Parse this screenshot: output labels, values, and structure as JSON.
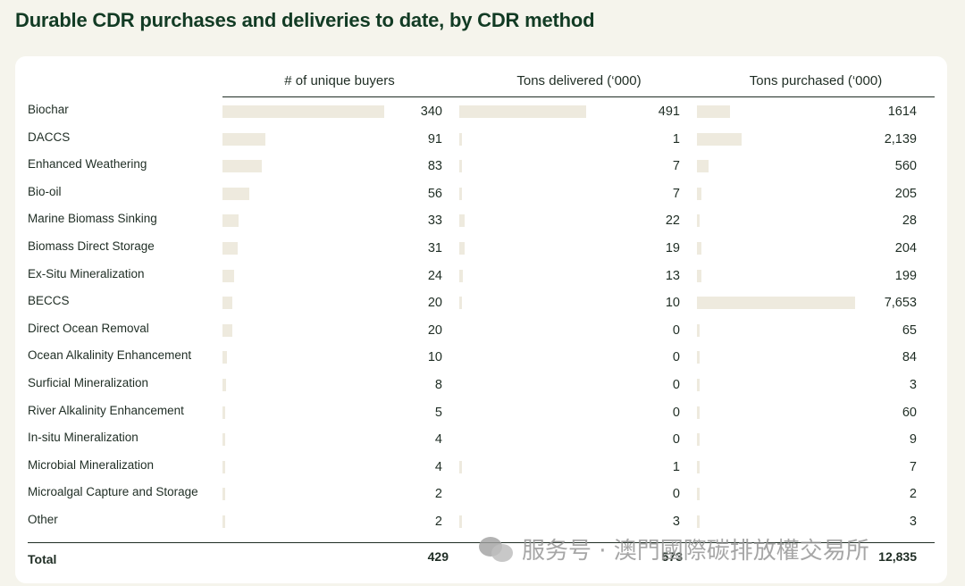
{
  "title": "Durable CDR purchases and deliveries to date, by CDR method",
  "headers": {
    "buyers": "# of unique buyers",
    "delivered": "Tons delivered (‘000)",
    "purchased": "Tons purchased (‘000)"
  },
  "chart_data": {
    "type": "table",
    "title": "Durable CDR purchases and deliveries to date, by CDR method",
    "columns": [
      "# of unique buyers",
      "Tons delivered (‘000)",
      "Tons purchased (‘000)"
    ],
    "rows": [
      {
        "label": "Biochar",
        "buyers": 340,
        "delivered": 491,
        "purchased": 1614,
        "buyers_text": "340",
        "delivered_text": "491",
        "purchased_text": "1614"
      },
      {
        "label": "DACCS",
        "buyers": 91,
        "delivered": 1,
        "purchased": 2139,
        "buyers_text": "91",
        "delivered_text": "1",
        "purchased_text": "2,139"
      },
      {
        "label": "Enhanced Weathering",
        "buyers": 83,
        "delivered": 7,
        "purchased": 560,
        "buyers_text": "83",
        "delivered_text": "7",
        "purchased_text": "560"
      },
      {
        "label": "Bio-oil",
        "buyers": 56,
        "delivered": 7,
        "purchased": 205,
        "buyers_text": "56",
        "delivered_text": "7",
        "purchased_text": "205"
      },
      {
        "label": "Marine Biomass Sinking",
        "buyers": 33,
        "delivered": 22,
        "purchased": 28,
        "buyers_text": "33",
        "delivered_text": "22",
        "purchased_text": "28"
      },
      {
        "label": "Biomass Direct Storage",
        "buyers": 31,
        "delivered": 19,
        "purchased": 204,
        "buyers_text": "31",
        "delivered_text": "19",
        "purchased_text": "204"
      },
      {
        "label": "Ex-Situ Mineralization",
        "buyers": 24,
        "delivered": 13,
        "purchased": 199,
        "buyers_text": "24",
        "delivered_text": "13",
        "purchased_text": "199"
      },
      {
        "label": "BECCS",
        "buyers": 20,
        "delivered": 10,
        "purchased": 7653,
        "buyers_text": "20",
        "delivered_text": "10",
        "purchased_text": "7,653"
      },
      {
        "label": "Direct Ocean Removal",
        "buyers": 20,
        "delivered": 0,
        "purchased": 65,
        "buyers_text": "20",
        "delivered_text": "0",
        "purchased_text": "65"
      },
      {
        "label": "Ocean Alkalinity Enhancement",
        "buyers": 10,
        "delivered": 0,
        "purchased": 84,
        "buyers_text": "10",
        "delivered_text": "0",
        "purchased_text": "84"
      },
      {
        "label": "Surficial Mineralization",
        "buyers": 8,
        "delivered": 0,
        "purchased": 3,
        "buyers_text": "8",
        "delivered_text": "0",
        "purchased_text": "3"
      },
      {
        "label": "River Alkalinity Enhancement",
        "buyers": 5,
        "delivered": 0,
        "purchased": 60,
        "buyers_text": "5",
        "delivered_text": "0",
        "purchased_text": "60"
      },
      {
        "label": "In-situ Mineralization",
        "buyers": 4,
        "delivered": 0,
        "purchased": 9,
        "buyers_text": "4",
        "delivered_text": "0",
        "purchased_text": "9"
      },
      {
        "label": "Microbial Mineralization",
        "buyers": 4,
        "delivered": 1,
        "purchased": 7,
        "buyers_text": "4",
        "delivered_text": "1",
        "purchased_text": "7"
      },
      {
        "label": "Microalgal Capture and Storage",
        "buyers": 2,
        "delivered": 0,
        "purchased": 2,
        "buyers_text": "2",
        "delivered_text": "0",
        "purchased_text": "2"
      },
      {
        "label": "Other",
        "buyers": 2,
        "delivered": 3,
        "purchased": 3,
        "buyers_text": "2",
        "delivered_text": "3",
        "purchased_text": "3"
      }
    ],
    "total": {
      "label": "Total",
      "buyers": "429",
      "delivered": "573",
      "purchased": "12,835"
    },
    "bar_color": "#eeeade"
  },
  "watermark": "服务号 · 澳門國際碳排放權交易所",
  "watermark_icon": "wechat-icon"
}
